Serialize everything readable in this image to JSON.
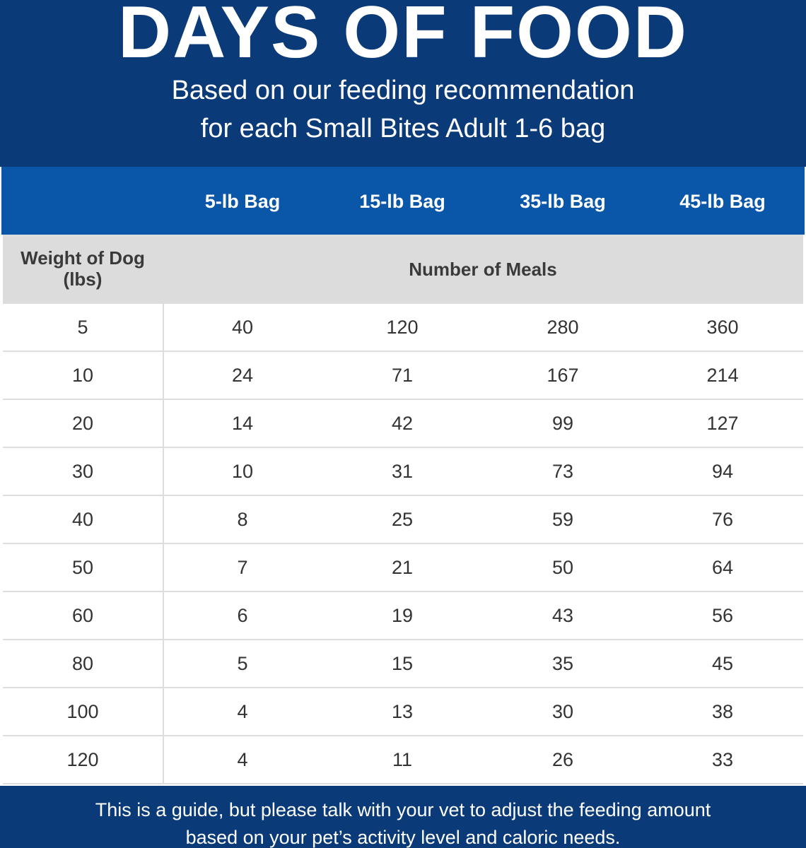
{
  "header": {
    "title": "DAYS OF FOOD",
    "subtitle_line1": "Based on our feeding recommendation",
    "subtitle_line2": "for each Small Bites Adult 1-6 bag"
  },
  "table": {
    "bag_headers": [
      "5-lb Bag",
      "15-lb Bag",
      "35-lb Bag",
      "45-lb Bag"
    ],
    "weight_header": "Weight of Dog (lbs)",
    "weight_header_line1": "Weight of Dog",
    "weight_header_line2": "(lbs)",
    "meals_header": "Number of Meals",
    "rows": [
      {
        "weight": "5",
        "values": [
          "40",
          "120",
          "280",
          "360"
        ]
      },
      {
        "weight": "10",
        "values": [
          "24",
          "71",
          "167",
          "214"
        ]
      },
      {
        "weight": "20",
        "values": [
          "14",
          "42",
          "99",
          "127"
        ]
      },
      {
        "weight": "30",
        "values": [
          "10",
          "31",
          "73",
          "94"
        ]
      },
      {
        "weight": "40",
        "values": [
          "8",
          "25",
          "59",
          "76"
        ]
      },
      {
        "weight": "50",
        "values": [
          "7",
          "21",
          "50",
          "64"
        ]
      },
      {
        "weight": "60",
        "values": [
          "6",
          "19",
          "43",
          "56"
        ]
      },
      {
        "weight": "80",
        "values": [
          "5",
          "15",
          "35",
          "45"
        ]
      },
      {
        "weight": "100",
        "values": [
          "4",
          "13",
          "30",
          "38"
        ]
      },
      {
        "weight": "120",
        "values": [
          "4",
          "11",
          "26",
          "33"
        ]
      }
    ]
  },
  "footer": {
    "note_line1": "This is a guide, but please talk with your vet to adjust the feeding amount",
    "note_line2": "based on your pet’s activity level and caloric needs."
  },
  "colors": {
    "navy": "#0b3a78",
    "blue_header": "#0a56a8",
    "gray_header": "#dcdcdc",
    "text_dark": "#333333",
    "white": "#ffffff"
  }
}
